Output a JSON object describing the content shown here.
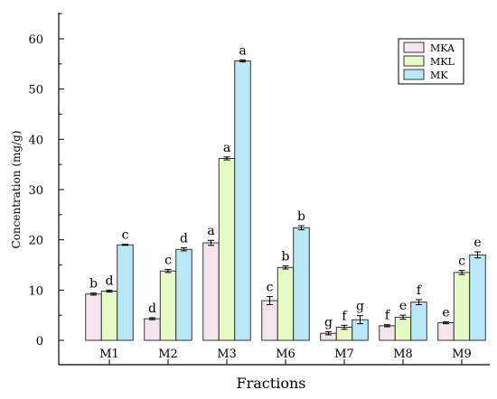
{
  "chart_data": {
    "type": "bar",
    "title": "",
    "xlabel": "Fractions",
    "ylabel": "Concentration (mg/g)",
    "ylim": [
      0,
      65
    ],
    "yticks": [
      0,
      10,
      20,
      30,
      40,
      50,
      60
    ],
    "legend_position": "top-right",
    "grid": false,
    "categories": [
      "M1",
      "M2",
      "M3",
      "M6",
      "M7",
      "M8",
      "M9"
    ],
    "series": [
      {
        "name": "MKA",
        "color": "#f6e4ec",
        "values": [
          9.2,
          4.3,
          19.4,
          7.9,
          1.4,
          2.9,
          3.5
        ],
        "errors": [
          0.2,
          0.2,
          0.5,
          0.8,
          0.3,
          0.2,
          0.2
        ],
        "labels": [
          "b",
          "d",
          "a",
          "c",
          "g",
          "f",
          "e"
        ]
      },
      {
        "name": "MKL",
        "color": "#e6fac6",
        "values": [
          9.8,
          13.8,
          36.2,
          14.5,
          2.6,
          4.6,
          13.5
        ],
        "errors": [
          0.2,
          0.3,
          0.3,
          0.3,
          0.4,
          0.4,
          0.4
        ],
        "labels": [
          "d",
          "c",
          "a",
          "b",
          "f",
          "e",
          "c"
        ]
      },
      {
        "name": "MK",
        "color": "#b8e8f8",
        "values": [
          19.0,
          18.1,
          55.6,
          22.4,
          4.1,
          7.6,
          17.0
        ],
        "errors": [
          0.1,
          0.3,
          0.2,
          0.4,
          0.8,
          0.5,
          0.6
        ],
        "labels": [
          "c",
          "d",
          "a",
          "b",
          "g",
          "f",
          "e"
        ]
      }
    ]
  }
}
